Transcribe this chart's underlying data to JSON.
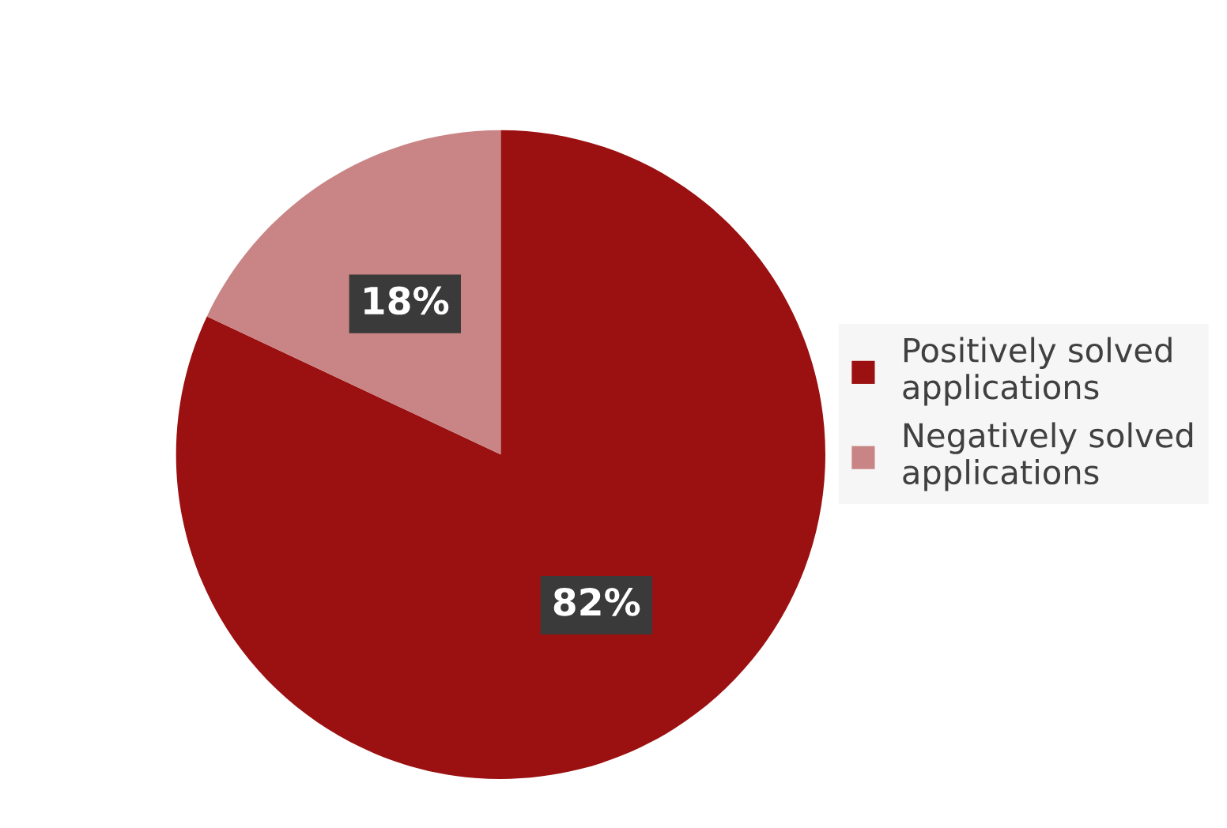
{
  "chart_data": {
    "type": "pie",
    "categories": [
      "Positively solved applications",
      "Negatively solved applications"
    ],
    "values": [
      82,
      18
    ],
    "colors": [
      "#9b1010",
      "#c98585"
    ],
    "value_labels": [
      "82%",
      "18%"
    ],
    "legend": "right"
  }
}
